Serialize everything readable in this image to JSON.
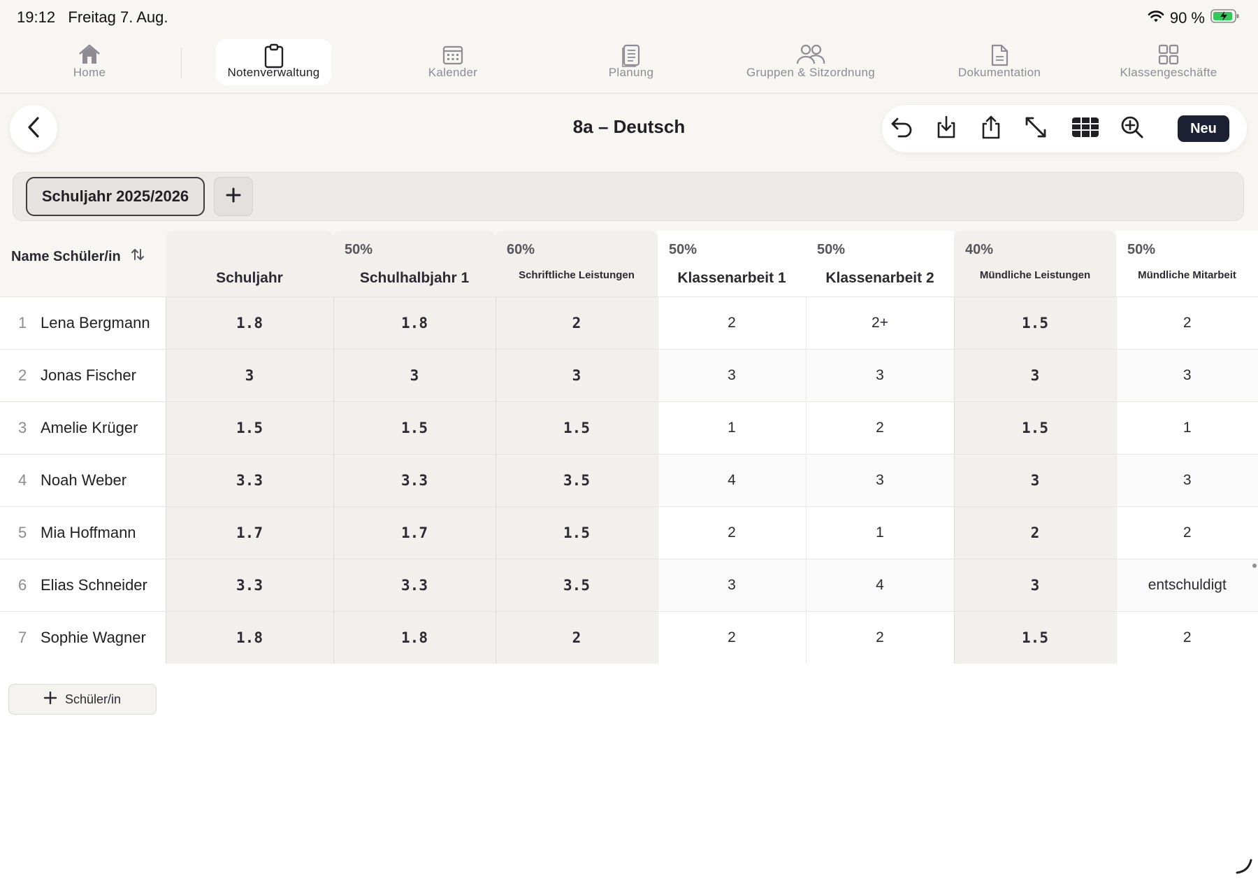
{
  "status": {
    "time": "19:12",
    "date": "Freitag 7. Aug.",
    "battery": "90 %"
  },
  "tabs": [
    {
      "label": "Home",
      "icon": "house-icon"
    },
    {
      "label": "Notenverwaltung",
      "icon": "clipboard-icon",
      "active": true
    },
    {
      "label": "Kalender",
      "icon": "calendar-icon"
    },
    {
      "label": "Planung",
      "icon": "document-stack-icon"
    },
    {
      "label": "Gruppen & Sitzordnung",
      "icon": "people-icon"
    },
    {
      "label": "Dokumentation",
      "icon": "document-icon"
    },
    {
      "label": "Klassengeschäfte",
      "icon": "grid-icon"
    }
  ],
  "header": {
    "title": "8a – Deutsch",
    "new_label": "Neu",
    "tools": [
      "undo-icon",
      "download-icon",
      "share-icon",
      "expand-icon",
      "table-view-icon",
      "zoom-in-icon"
    ]
  },
  "period": {
    "selected": "Schuljahr 2025/2026"
  },
  "table": {
    "name_header": "Name Schüler/in",
    "columns": [
      {
        "pct": "",
        "name": "Schuljahr",
        "small": false,
        "shaded": true
      },
      {
        "pct": "50%",
        "name": "Schulhalbjahr 1",
        "small": false,
        "shaded": true
      },
      {
        "pct": "60%",
        "name": "Schriftliche Leistungen",
        "small": true,
        "shaded": true
      },
      {
        "pct": "50%",
        "name": "Klassenarbeit 1",
        "small": false,
        "shaded": false
      },
      {
        "pct": "50%",
        "name": "Klassenarbeit 2",
        "small": false,
        "shaded": false
      },
      {
        "pct": "40%",
        "name": "Mündliche Leistungen",
        "small": true,
        "shaded": true
      },
      {
        "pct": "50%",
        "name": "Mündliche Mitarbeit",
        "small": true,
        "shaded": false
      }
    ],
    "rows": [
      {
        "idx": "1",
        "name": "Lena Bergmann",
        "values": [
          "1.8",
          "1.8",
          "2",
          "2",
          "2+",
          "1.5",
          "2"
        ]
      },
      {
        "idx": "2",
        "name": "Jonas Fischer",
        "values": [
          "3",
          "3",
          "3",
          "3",
          "3",
          "3",
          "3"
        ]
      },
      {
        "idx": "3",
        "name": "Amelie Krüger",
        "values": [
          "1.5",
          "1.5",
          "1.5",
          "1",
          "2",
          "1.5",
          "1"
        ]
      },
      {
        "idx": "4",
        "name": "Noah Weber",
        "values": [
          "3.3",
          "3.3",
          "3.5",
          "4",
          "3",
          "3",
          "3"
        ]
      },
      {
        "idx": "5",
        "name": "Mia Hoffmann",
        "values": [
          "1.7",
          "1.7",
          "1.5",
          "2",
          "1",
          "2",
          "2"
        ]
      },
      {
        "idx": "6",
        "name": "Elias Schneider",
        "values": [
          "3.3",
          "3.3",
          "3.5",
          "3",
          "4",
          "3",
          "entschuldigt"
        ]
      },
      {
        "idx": "7",
        "name": "Sophie Wagner",
        "values": [
          "1.8",
          "1.8",
          "2",
          "2",
          "2",
          "1.5",
          "2"
        ]
      }
    ]
  },
  "add_student_label": "Schüler/in"
}
